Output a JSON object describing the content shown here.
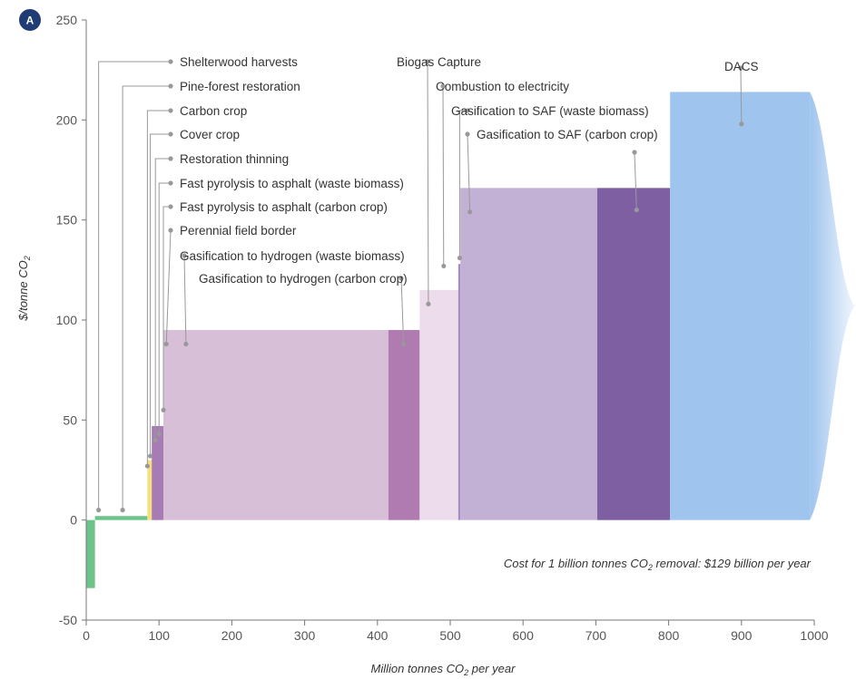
{
  "panel_label": "A",
  "chart_data": {
    "type": "bar",
    "subtype": "marginal-abatement-cost-curve",
    "xlabel": "Million tonnes CO",
    "xlabel_sub": "2",
    "xlabel_tail": " per year",
    "ylabel": "$/tonne CO",
    "ylabel_sub": "2",
    "xlim": [
      0,
      1000
    ],
    "ylim": [
      -50,
      250
    ],
    "x_ticks": [
      0,
      100,
      200,
      300,
      400,
      500,
      600,
      700,
      800,
      900,
      1000
    ],
    "y_ticks": [
      -50,
      0,
      50,
      100,
      150,
      200,
      250
    ],
    "grid": false,
    "segments": [
      {
        "x0": 0,
        "x1": 12,
        "y": -34,
        "color": "#6cc48a"
      },
      {
        "x0": 12,
        "x1": 84,
        "y": 2,
        "color": "#6cc48a"
      },
      {
        "x0": 84,
        "x1": 90,
        "y": 30,
        "color": "#f5e07a"
      },
      {
        "x0": 90,
        "x1": 106,
        "y": 47,
        "color": "#a77bb3"
      },
      {
        "x0": 106,
        "x1": 110,
        "y": 88,
        "color": "#f2d77c"
      },
      {
        "x0": 106,
        "x1": 415,
        "y": 95,
        "color": "#d8bfd8"
      },
      {
        "x0": 415,
        "x1": 458,
        "y": 95,
        "color": "#b07bb0"
      },
      {
        "x0": 458,
        "x1": 511,
        "y": 115,
        "color": "#ecdcec"
      },
      {
        "x0": 511,
        "x1": 514,
        "y": 128,
        "color": "#a58dc4"
      },
      {
        "x0": 514,
        "x1": 702,
        "y": 166,
        "color": "#c2b1d4"
      },
      {
        "x0": 702,
        "x1": 802,
        "y": 166,
        "color": "#7e5fa2"
      },
      {
        "x0": 802,
        "x1": 994,
        "y": 214,
        "color": "#9fc4ee"
      }
    ],
    "annotations": [
      {
        "label": "Shelterwood harvests",
        "x": 17,
        "y": 5
      },
      {
        "label": "Pine-forest restoration",
        "x": 50,
        "y": 5
      },
      {
        "label": "Carbon crop",
        "x": 84,
        "y": 27
      },
      {
        "label": "Cover crop",
        "x": 88,
        "y": 32
      },
      {
        "label": "Restoration thinning",
        "x": 95,
        "y": 40
      },
      {
        "label": "Fast pyrolysis to asphalt (waste biomass)",
        "x": 100,
        "y": 43
      },
      {
        "label": "Fast pyrolysis to asphalt (carbon crop)",
        "x": 106,
        "y": 55
      },
      {
        "label": "Perennial field border",
        "x": 110,
        "y": 88
      },
      {
        "label": "Gasification to hydrogen (waste biomass)",
        "x": 137,
        "y": 88
      },
      {
        "label": "Gasification to hydrogen (carbon crop)",
        "x": 436,
        "y": 88
      },
      {
        "label": "Biogas Capture",
        "x": 470,
        "y": 108
      },
      {
        "label": "Combustion to electricity",
        "x": 491,
        "y": 127
      },
      {
        "label": "Gasification to SAF (waste biomass)",
        "x": 513,
        "y": 131
      },
      {
        "label": "Gasification to SAF (carbon crop)",
        "x": 527,
        "y": 154
      },
      {
        "label": "",
        "x": 756,
        "y": 155
      },
      {
        "label": "DACS",
        "x": 900,
        "y": 198
      }
    ],
    "note": "Cost for 1 billion tonnes CO",
    "note_sub": "2",
    "note_tail": " removal: $129 billion per year"
  }
}
